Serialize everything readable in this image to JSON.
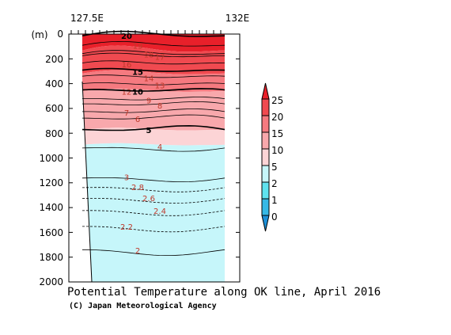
{
  "chart_data": {
    "type": "contour section",
    "title": "Potential Temperature along OK line, April 2016",
    "credit": "(C) Japan Meteorological Agency",
    "y_unit": "(m)",
    "x_ticks": [
      "127.5E",
      "132E"
    ],
    "y_ticks": [
      "0",
      "200",
      "400",
      "600",
      "800",
      "1000",
      "1200",
      "1400",
      "1600",
      "1800",
      "2000"
    ],
    "y_range": [
      0,
      2000
    ],
    "y_inverted": true,
    "colorbar": {
      "levels": [
        "25",
        "20",
        "15",
        "10",
        "5",
        "2",
        "1",
        "0"
      ],
      "colors": [
        "#e8202a",
        "#f04a50",
        "#f57a80",
        "#f8a8ac",
        "#fcd4d6",
        "#c6f6fa",
        "#5fe3ef",
        "#36b9e6",
        "#1d90d8"
      ]
    },
    "contour_labels": [
      {
        "text": "20",
        "depth": 20
      },
      {
        "text": "19",
        "depth": 100
      },
      {
        "text": "18",
        "depth": 170
      },
      {
        "text": "17",
        "depth": 190
      },
      {
        "text": "16",
        "depth": 250
      },
      {
        "text": "15",
        "depth": 310
      },
      {
        "text": "14",
        "depth": 360
      },
      {
        "text": "13",
        "depth": 420
      },
      {
        "text": "12",
        "depth": 470
      },
      {
        "text": "10",
        "depth": 470
      },
      {
        "text": "9",
        "depth": 540
      },
      {
        "text": "8",
        "depth": 580
      },
      {
        "text": "7",
        "depth": 640
      },
      {
        "text": "6",
        "depth": 690
      },
      {
        "text": "5",
        "depth": 780
      },
      {
        "text": "4",
        "depth": 915
      },
      {
        "text": "3",
        "depth": 1160
      },
      {
        "text": "2.8",
        "depth": 1240
      },
      {
        "text": "2.6",
        "depth": 1330
      },
      {
        "text": "2.4",
        "depth": 1430
      },
      {
        "text": "2.2",
        "depth": 1560
      },
      {
        "text": "2",
        "depth": 1750
      }
    ]
  }
}
